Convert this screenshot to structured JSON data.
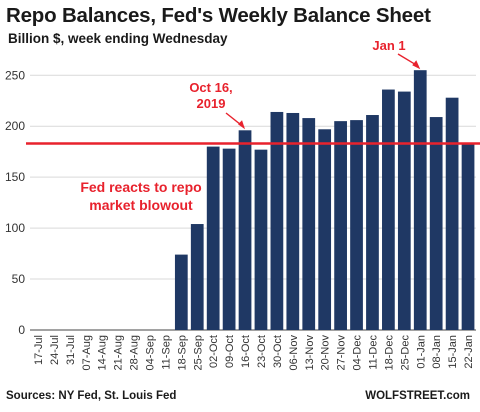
{
  "title": "Repo Balances, Fed's Weekly Balance Sheet",
  "subtitle": "Billion $, week ending Wednesday",
  "source": "Sources: NY Fed, St. Louis Fed",
  "brand": "WOLFSTREET.com",
  "colors": {
    "bar": "#1f3864",
    "reference_line": "#e8222d",
    "annotation": "#e8222d",
    "grid": "#d9d9d9",
    "axis": "#444444"
  },
  "chart_data": {
    "type": "bar",
    "title": "Repo Balances, Fed's Weekly Balance Sheet",
    "subtitle": "Billion $, week ending Wednesday",
    "xlabel": "",
    "ylabel": "",
    "ylim": [
      0,
      265
    ],
    "yticks": [
      0,
      50,
      100,
      150,
      200,
      250
    ],
    "grid": true,
    "categories": [
      "17-Jul",
      "24-Jul",
      "31-Jul",
      "07-Aug",
      "14-Aug",
      "21-Aug",
      "28-Aug",
      "04-Sep",
      "11-Sep",
      "18-Sep",
      "25-Sep",
      "02-Oct",
      "09-Oct",
      "16-Oct",
      "23-Oct",
      "30-Oct",
      "06-Nov",
      "13-Nov",
      "20-Nov",
      "27-Nov",
      "04-Dec",
      "11-Dec",
      "18-Dec",
      "25-Dec",
      "01-Jan",
      "08-Jan",
      "15-Jan",
      "22-Jan"
    ],
    "values": [
      0,
      0,
      0,
      0,
      0,
      0,
      0,
      0,
      0,
      74,
      104,
      180,
      178,
      196,
      177,
      214,
      213,
      208,
      197,
      205,
      206,
      211,
      236,
      234,
      255,
      209,
      228,
      183
    ],
    "reference_line": {
      "value": 183,
      "orientation": "horizontal"
    },
    "annotations": [
      {
        "id": "oct16",
        "lines": [
          "Oct 16,",
          "2019"
        ],
        "category": "16-Oct",
        "arrow": true
      },
      {
        "id": "jan1",
        "lines": [
          "Jan 1"
        ],
        "category": "01-Jan",
        "arrow": true
      },
      {
        "id": "fed-reacts",
        "lines": [
          "Fed reacts to repo",
          "market blowout"
        ],
        "arrow": false
      }
    ]
  }
}
